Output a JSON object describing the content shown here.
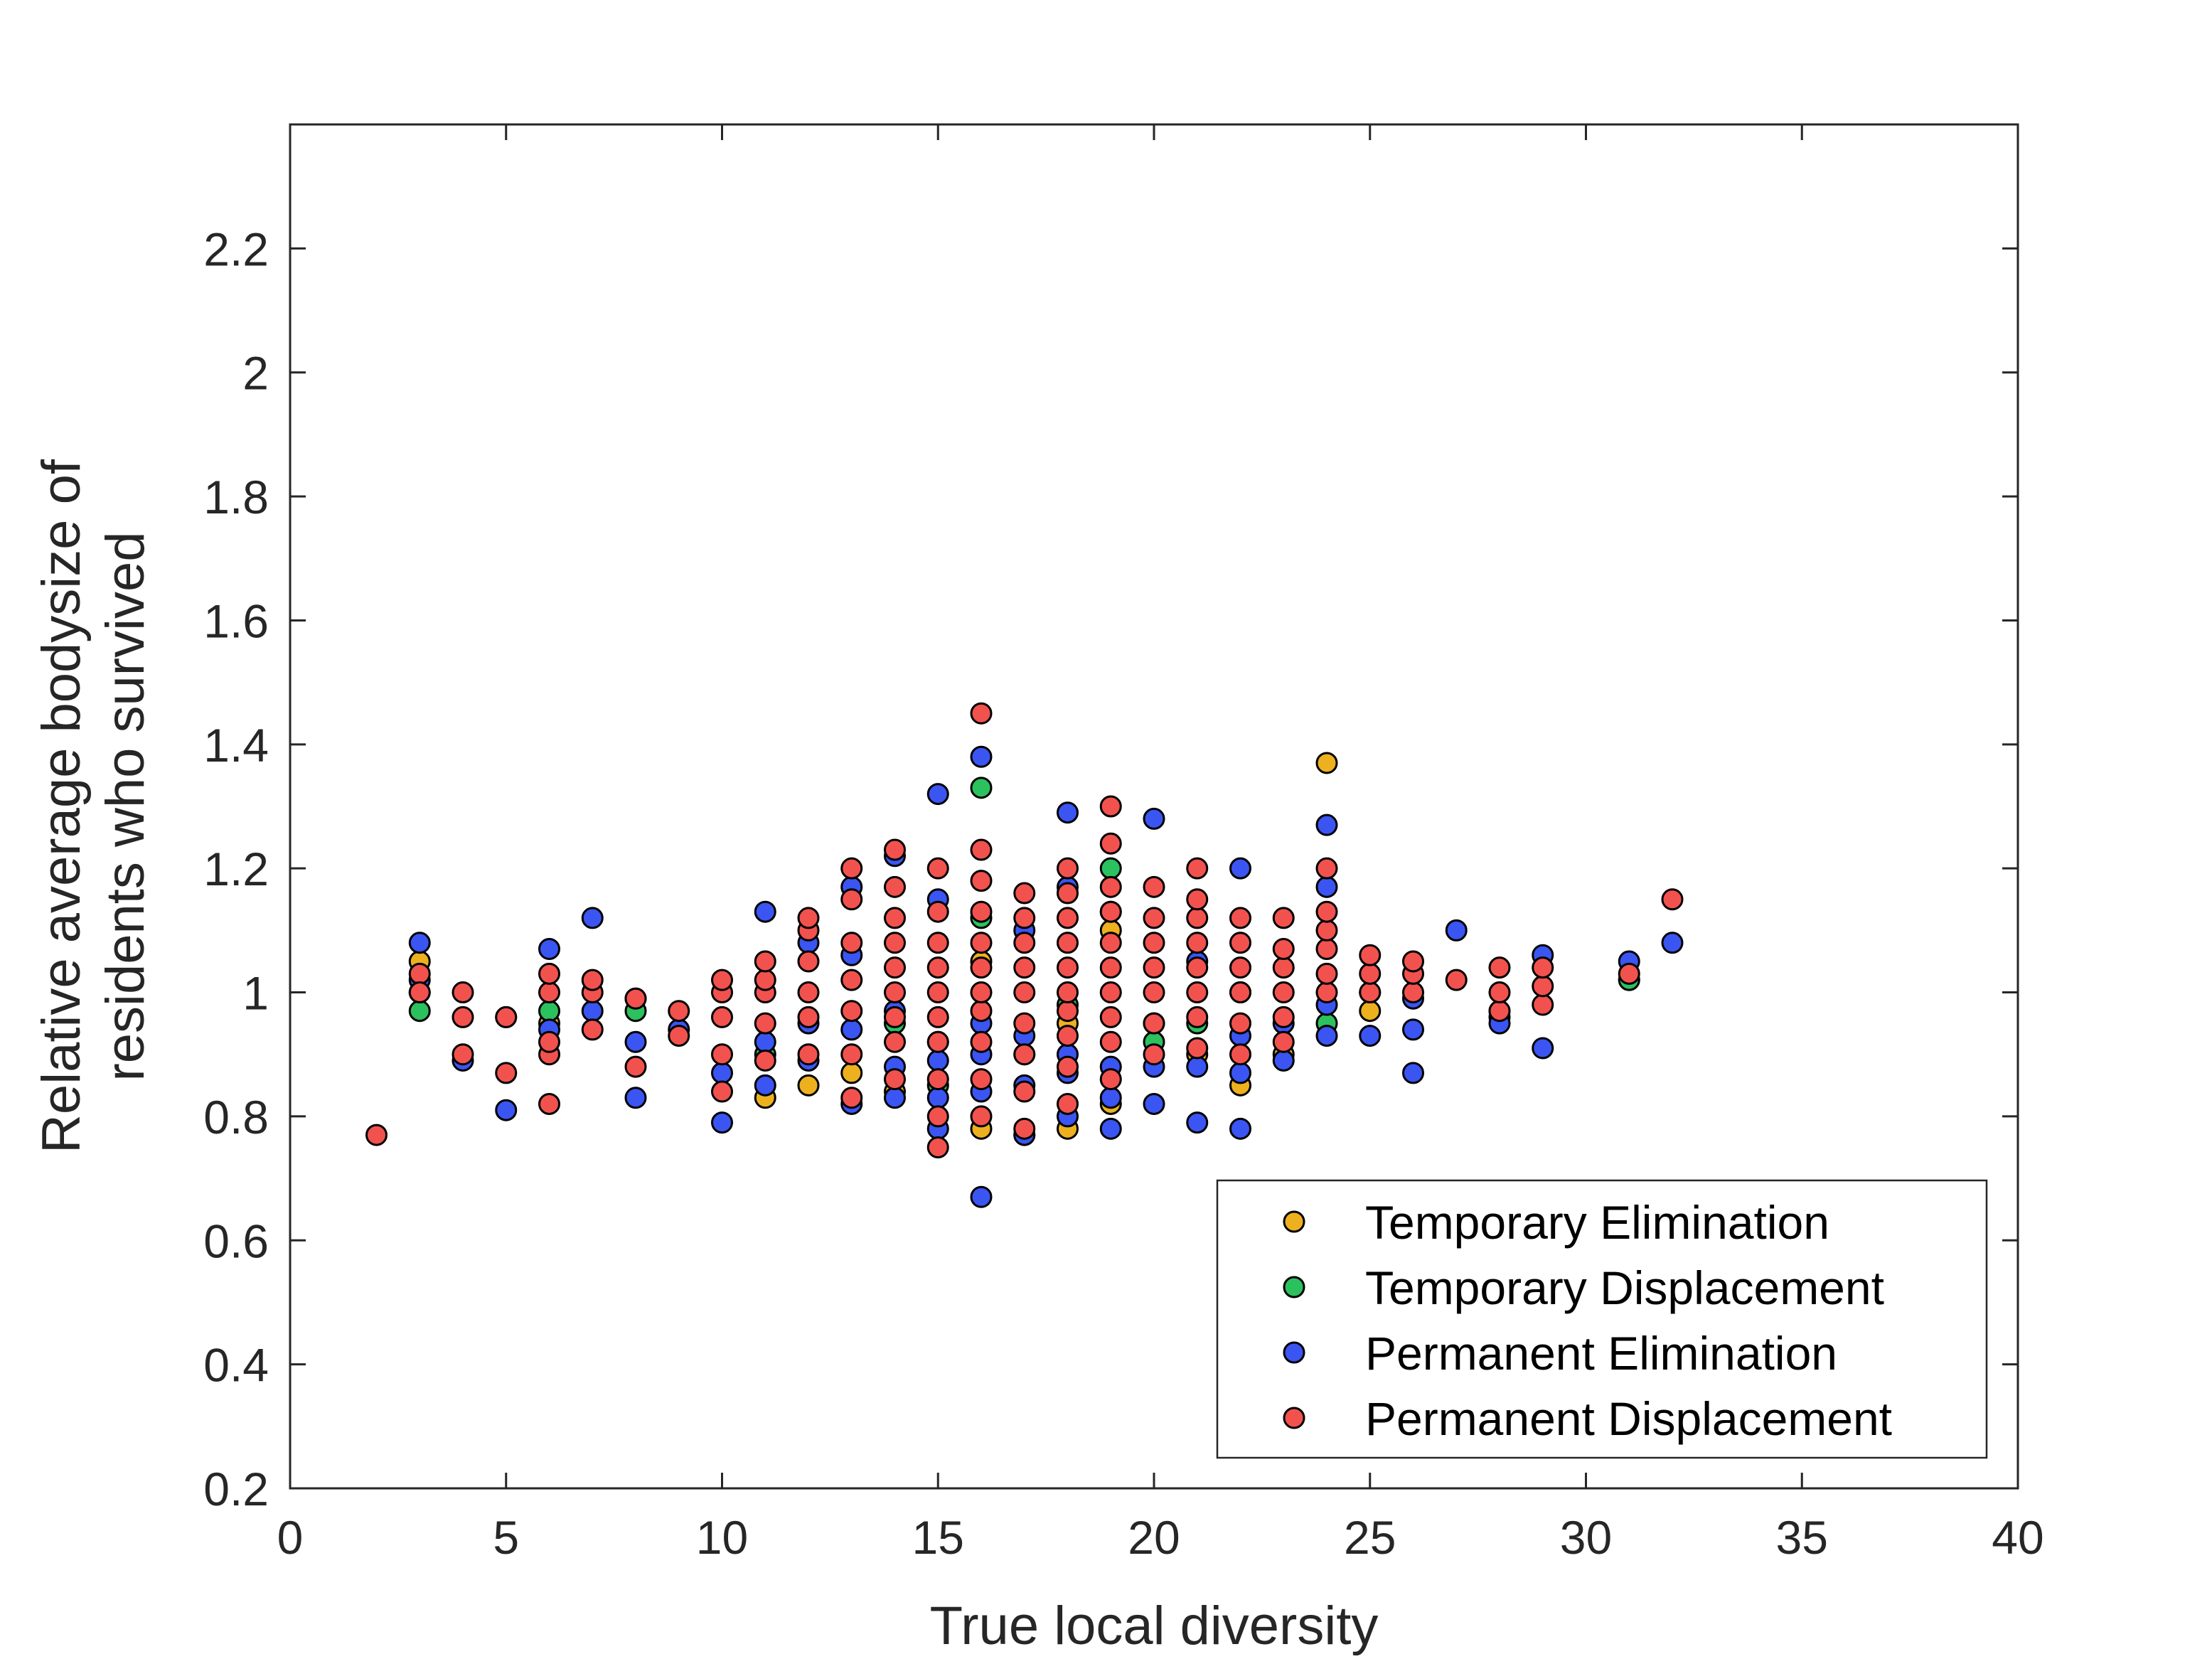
{
  "chart_data": {
    "type": "scatter",
    "xlabel": "True local diversity",
    "ylabel": [
      "Relative average bodysize of",
      "residents who survived"
    ],
    "xlim": [
      0,
      40
    ],
    "ylim": [
      0.2,
      2.4
    ],
    "xticks": [
      0,
      5,
      10,
      15,
      20,
      25,
      30,
      35,
      40
    ],
    "yticks": [
      0.2,
      0.4,
      0.6,
      0.8,
      1,
      1.2,
      1.4,
      1.6,
      1.8,
      2,
      2.2
    ],
    "ytick_labels": [
      "0.2",
      "0.4",
      "0.6",
      "0.8",
      "1",
      "1.2",
      "1.4",
      "1.6",
      "1.8",
      "2",
      "2.2"
    ],
    "grid": false,
    "legend_position": "bottom-right",
    "series": [
      {
        "name": "Temporary Elimination",
        "color": "#EDB120",
        "points": [
          [
            3,
            1.05
          ],
          [
            3,
            1.0
          ],
          [
            6,
            0.95
          ],
          [
            8,
            0.99
          ],
          [
            11,
            0.83
          ],
          [
            12,
            0.85
          ],
          [
            13,
            0.87
          ],
          [
            14,
            0.84
          ],
          [
            15,
            0.92
          ],
          [
            16,
            0.78
          ],
          [
            16,
            1.05
          ],
          [
            17,
            0.77
          ],
          [
            18,
            0.78
          ],
          [
            18,
            0.95
          ],
          [
            19,
            0.82
          ],
          [
            19,
            1.1
          ],
          [
            20,
            0.95
          ],
          [
            21,
            0.9
          ],
          [
            22,
            0.85
          ],
          [
            23,
            0.9
          ],
          [
            24,
            1.37
          ],
          [
            25,
            0.97
          ],
          [
            28,
            0.97
          ],
          [
            31,
            1.02
          ]
        ]
      },
      {
        "name": "Temporary Displacement",
        "color": "#2CC15F",
        "points": [
          [
            3,
            0.97
          ],
          [
            6,
            0.97
          ],
          [
            8,
            0.97
          ],
          [
            11,
            0.9
          ],
          [
            14,
            0.95
          ],
          [
            15,
            0.85
          ],
          [
            16,
            1.33
          ],
          [
            16,
            1.12
          ],
          [
            17,
            0.9
          ],
          [
            18,
            0.98
          ],
          [
            19,
            1.2
          ],
          [
            20,
            0.92
          ],
          [
            21,
            0.95
          ],
          [
            22,
            1.0
          ],
          [
            24,
            0.95
          ],
          [
            25,
            1.0
          ],
          [
            28,
            0.96
          ],
          [
            31,
            1.02
          ]
        ]
      },
      {
        "name": "Permanent Elimination",
        "color": "#3B55F2",
        "points": [
          [
            3,
            1.08
          ],
          [
            3,
            1.02
          ],
          [
            4,
            0.89
          ],
          [
            5,
            0.81
          ],
          [
            5,
            0.96
          ],
          [
            6,
            1.07
          ],
          [
            6,
            0.94
          ],
          [
            7,
            1.12
          ],
          [
            7,
            0.97
          ],
          [
            8,
            0.83
          ],
          [
            8,
            0.92
          ],
          [
            9,
            0.94
          ],
          [
            10,
            0.79
          ],
          [
            10,
            0.87
          ],
          [
            11,
            1.13
          ],
          [
            11,
            0.85
          ],
          [
            11,
            0.92
          ],
          [
            12,
            0.89
          ],
          [
            12,
            0.95
          ],
          [
            12,
            1.08
          ],
          [
            13,
            1.17
          ],
          [
            13,
            0.82
          ],
          [
            13,
            0.94
          ],
          [
            13,
            1.06
          ],
          [
            14,
            1.22
          ],
          [
            14,
            0.83
          ],
          [
            14,
            0.88
          ],
          [
            14,
            0.97
          ],
          [
            15,
            1.32
          ],
          [
            15,
            1.15
          ],
          [
            15,
            0.78
          ],
          [
            15,
            0.89
          ],
          [
            15,
            0.83
          ],
          [
            16,
            1.38
          ],
          [
            16,
            0.67
          ],
          [
            16,
            0.84
          ],
          [
            16,
            0.9
          ],
          [
            16,
            0.95
          ],
          [
            17,
            0.77
          ],
          [
            17,
            0.85
          ],
          [
            17,
            0.93
          ],
          [
            17,
            1.1
          ],
          [
            18,
            1.29
          ],
          [
            18,
            0.8
          ],
          [
            18,
            0.87
          ],
          [
            18,
            0.9
          ],
          [
            18,
            1.17
          ],
          [
            19,
            0.78
          ],
          [
            19,
            0.83
          ],
          [
            19,
            0.88
          ],
          [
            19,
            1.13
          ],
          [
            20,
            1.28
          ],
          [
            20,
            0.82
          ],
          [
            20,
            0.88
          ],
          [
            21,
            0.79
          ],
          [
            21,
            0.88
          ],
          [
            21,
            1.05
          ],
          [
            22,
            1.2
          ],
          [
            22,
            0.78
          ],
          [
            22,
            0.87
          ],
          [
            22,
            0.93
          ],
          [
            23,
            0.89
          ],
          [
            23,
            0.95
          ],
          [
            24,
            1.27
          ],
          [
            24,
            1.17
          ],
          [
            24,
            0.93
          ],
          [
            24,
            0.98
          ],
          [
            25,
            0.93
          ],
          [
            26,
            0.87
          ],
          [
            26,
            0.94
          ],
          [
            26,
            0.99
          ],
          [
            27,
            1.1
          ],
          [
            28,
            0.95
          ],
          [
            29,
            0.91
          ],
          [
            29,
            1.06
          ],
          [
            31,
            1.05
          ],
          [
            32,
            1.08
          ]
        ]
      },
      {
        "name": "Permanent Displacement",
        "color": "#F2524E",
        "points": [
          [
            2,
            0.77
          ],
          [
            3,
            1.03
          ],
          [
            3,
            1.0
          ],
          [
            4,
            1.0
          ],
          [
            4,
            0.96
          ],
          [
            4,
            0.9
          ],
          [
            5,
            0.96
          ],
          [
            5,
            0.87
          ],
          [
            6,
            0.82
          ],
          [
            6,
            0.9
          ],
          [
            6,
            0.92
          ],
          [
            6,
            1.0
          ],
          [
            6,
            1.03
          ],
          [
            7,
            0.94
          ],
          [
            7,
            1.0
          ],
          [
            7,
            1.02
          ],
          [
            8,
            0.88
          ],
          [
            8,
            0.99
          ],
          [
            9,
            0.93
          ],
          [
            9,
            0.97
          ],
          [
            10,
            0.84
          ],
          [
            10,
            0.9
          ],
          [
            10,
            0.96
          ],
          [
            10,
            1.0
          ],
          [
            10,
            1.02
          ],
          [
            11,
            0.89
          ],
          [
            11,
            0.95
          ],
          [
            11,
            1.0
          ],
          [
            11,
            1.02
          ],
          [
            11,
            1.05
          ],
          [
            12,
            0.9
          ],
          [
            12,
            0.96
          ],
          [
            12,
            1.0
          ],
          [
            12,
            1.05
          ],
          [
            12,
            1.1
          ],
          [
            12,
            1.12
          ],
          [
            13,
            0.83
          ],
          [
            13,
            0.9
          ],
          [
            13,
            0.97
          ],
          [
            13,
            1.02
          ],
          [
            13,
            1.08
          ],
          [
            13,
            1.15
          ],
          [
            13,
            1.2
          ],
          [
            14,
            0.86
          ],
          [
            14,
            0.92
          ],
          [
            14,
            0.96
          ],
          [
            14,
            1.0
          ],
          [
            14,
            1.04
          ],
          [
            14,
            1.08
          ],
          [
            14,
            1.12
          ],
          [
            14,
            1.17
          ],
          [
            14,
            1.23
          ],
          [
            15,
            0.75
          ],
          [
            15,
            0.8
          ],
          [
            15,
            0.86
          ],
          [
            15,
            0.92
          ],
          [
            15,
            0.96
          ],
          [
            15,
            1.0
          ],
          [
            15,
            1.04
          ],
          [
            15,
            1.08
          ],
          [
            15,
            1.13
          ],
          [
            15,
            1.2
          ],
          [
            16,
            0.8
          ],
          [
            16,
            0.86
          ],
          [
            16,
            0.92
          ],
          [
            16,
            0.97
          ],
          [
            16,
            1.0
          ],
          [
            16,
            1.04
          ],
          [
            16,
            1.08
          ],
          [
            16,
            1.13
          ],
          [
            16,
            1.18
          ],
          [
            16,
            1.23
          ],
          [
            16,
            1.45
          ],
          [
            17,
            0.78
          ],
          [
            17,
            0.84
          ],
          [
            17,
            0.9
          ],
          [
            17,
            0.95
          ],
          [
            17,
            1.0
          ],
          [
            17,
            1.04
          ],
          [
            17,
            1.08
          ],
          [
            17,
            1.12
          ],
          [
            17,
            1.16
          ],
          [
            18,
            0.82
          ],
          [
            18,
            0.88
          ],
          [
            18,
            0.93
          ],
          [
            18,
            0.97
          ],
          [
            18,
            1.0
          ],
          [
            18,
            1.04
          ],
          [
            18,
            1.08
          ],
          [
            18,
            1.12
          ],
          [
            18,
            1.16
          ],
          [
            18,
            1.2
          ],
          [
            19,
            0.86
          ],
          [
            19,
            0.92
          ],
          [
            19,
            0.96
          ],
          [
            19,
            1.0
          ],
          [
            19,
            1.04
          ],
          [
            19,
            1.08
          ],
          [
            19,
            1.13
          ],
          [
            19,
            1.17
          ],
          [
            19,
            1.24
          ],
          [
            19,
            1.3
          ],
          [
            20,
            0.9
          ],
          [
            20,
            0.95
          ],
          [
            20,
            1.0
          ],
          [
            20,
            1.04
          ],
          [
            20,
            1.08
          ],
          [
            20,
            1.12
          ],
          [
            20,
            1.17
          ],
          [
            21,
            0.91
          ],
          [
            21,
            0.96
          ],
          [
            21,
            1.0
          ],
          [
            21,
            1.04
          ],
          [
            21,
            1.08
          ],
          [
            21,
            1.12
          ],
          [
            21,
            1.15
          ],
          [
            21,
            1.2
          ],
          [
            22,
            0.9
          ],
          [
            22,
            0.95
          ],
          [
            22,
            1.0
          ],
          [
            22,
            1.04
          ],
          [
            22,
            1.08
          ],
          [
            22,
            1.12
          ],
          [
            23,
            0.92
          ],
          [
            23,
            0.96
          ],
          [
            23,
            1.0
          ],
          [
            23,
            1.04
          ],
          [
            23,
            1.07
          ],
          [
            23,
            1.12
          ],
          [
            24,
            1.0
          ],
          [
            24,
            1.03
          ],
          [
            24,
            1.07
          ],
          [
            24,
            1.1
          ],
          [
            24,
            1.13
          ],
          [
            24,
            1.2
          ],
          [
            25,
            1.0
          ],
          [
            25,
            1.03
          ],
          [
            25,
            1.06
          ],
          [
            26,
            1.0
          ],
          [
            26,
            1.03
          ],
          [
            26,
            1.05
          ],
          [
            27,
            1.02
          ],
          [
            28,
            0.97
          ],
          [
            28,
            1.0
          ],
          [
            28,
            1.04
          ],
          [
            29,
            0.98
          ],
          [
            29,
            1.01
          ],
          [
            29,
            1.04
          ],
          [
            31,
            1.03
          ],
          [
            32,
            1.15
          ]
        ]
      }
    ]
  }
}
